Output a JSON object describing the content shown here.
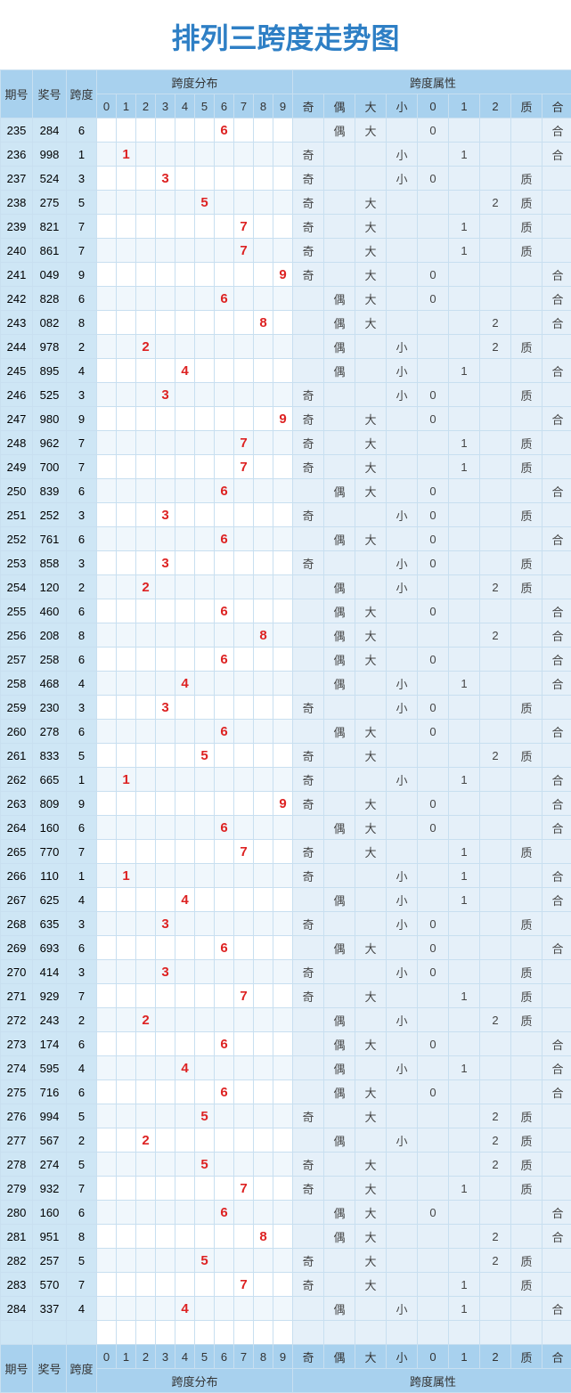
{
  "title": "排列三跨度走势图",
  "headers": {
    "期号": "期号",
    "奖号": "奖号",
    "跨度": "跨度",
    "跨度分布": "跨度分布",
    "跨度属性": "跨度属性",
    "nums": [
      "0",
      "1",
      "2",
      "3",
      "4",
      "5",
      "6",
      "7",
      "8",
      "9"
    ],
    "attrs": [
      "奇",
      "偶",
      "大",
      "小",
      "0",
      "1",
      "2",
      "质",
      "合"
    ]
  },
  "rows": [
    {
      "期号": "235",
      "奖号": "284",
      "跨度": "6",
      "分布": 6,
      "属": {
        "偶": "偶",
        "大": "大",
        "0": "0",
        "合": "合"
      }
    },
    {
      "期号": "236",
      "奖号": "998",
      "跨度": "1",
      "分布": 1,
      "属": {
        "奇": "奇",
        "小": "小",
        "1": "1",
        "合": "合"
      }
    },
    {
      "期号": "237",
      "奖号": "524",
      "跨度": "3",
      "分布": 3,
      "属": {
        "奇": "奇",
        "小": "小",
        "0": "0",
        "质": "质"
      }
    },
    {
      "期号": "238",
      "奖号": "275",
      "跨度": "5",
      "分布": 5,
      "属": {
        "奇": "奇",
        "大": "大",
        "2": "2",
        "质": "质"
      }
    },
    {
      "期号": "239",
      "奖号": "821",
      "跨度": "7",
      "分布": 7,
      "属": {
        "奇": "奇",
        "大": "大",
        "1": "1",
        "质": "质"
      }
    },
    {
      "期号": "240",
      "奖号": "861",
      "跨度": "7",
      "分布": 7,
      "属": {
        "奇": "奇",
        "大": "大",
        "1": "1",
        "质": "质"
      }
    },
    {
      "期号": "241",
      "奖号": "049",
      "跨度": "9",
      "分布": 9,
      "属": {
        "奇": "奇",
        "大": "大",
        "0": "0",
        "合": "合"
      }
    },
    {
      "期号": "242",
      "奖号": "828",
      "跨度": "6",
      "分布": 6,
      "属": {
        "偶": "偶",
        "大": "大",
        "0": "0",
        "合": "合"
      }
    },
    {
      "期号": "243",
      "奖号": "082",
      "跨度": "8",
      "分布": 8,
      "属": {
        "偶": "偶",
        "大": "大",
        "2": "2",
        "合": "合"
      }
    },
    {
      "期号": "244",
      "奖号": "978",
      "跨度": "2",
      "分布": 2,
      "属": {
        "偶": "偶",
        "小": "小",
        "2": "2",
        "质": "质"
      }
    },
    {
      "期号": "245",
      "奖号": "895",
      "跨度": "4",
      "分布": 4,
      "属": {
        "偶": "偶",
        "小": "小",
        "1": "1",
        "合": "合"
      }
    },
    {
      "期号": "246",
      "奖号": "525",
      "跨度": "3",
      "分布": 3,
      "属": {
        "奇": "奇",
        "小": "小",
        "0": "0",
        "质": "质"
      }
    },
    {
      "期号": "247",
      "奖号": "980",
      "跨度": "9",
      "分布": 9,
      "属": {
        "奇": "奇",
        "大": "大",
        "0": "0",
        "合": "合"
      }
    },
    {
      "期号": "248",
      "奖号": "962",
      "跨度": "7",
      "分布": 7,
      "属": {
        "奇": "奇",
        "大": "大",
        "1": "1",
        "质": "质"
      }
    },
    {
      "期号": "249",
      "奖号": "700",
      "跨度": "7",
      "分布": 7,
      "属": {
        "奇": "奇",
        "大": "大",
        "1": "1",
        "质": "质"
      }
    },
    {
      "期号": "250",
      "奖号": "839",
      "跨度": "6",
      "分布": 6,
      "属": {
        "偶": "偶",
        "大": "大",
        "0": "0",
        "合": "合"
      }
    },
    {
      "期号": "251",
      "奖号": "252",
      "跨度": "3",
      "分布": 3,
      "属": {
        "奇": "奇",
        "小": "小",
        "0": "0",
        "质": "质"
      }
    },
    {
      "期号": "252",
      "奖号": "761",
      "跨度": "6",
      "分布": 6,
      "属": {
        "偶": "偶",
        "大": "大",
        "0": "0",
        "合": "合"
      }
    },
    {
      "期号": "253",
      "奖号": "858",
      "跨度": "3",
      "分布": 3,
      "属": {
        "奇": "奇",
        "小": "小",
        "0": "0",
        "质": "质"
      }
    },
    {
      "期号": "254",
      "奖号": "120",
      "跨度": "2",
      "分布": 2,
      "属": {
        "偶": "偶",
        "小": "小",
        "2": "2",
        "质": "质"
      }
    },
    {
      "期号": "255",
      "奖号": "460",
      "跨度": "6",
      "分布": 6,
      "属": {
        "偶": "偶",
        "大": "大",
        "0": "0",
        "合": "合"
      }
    },
    {
      "期号": "256",
      "奖号": "208",
      "跨度": "8",
      "分布": 8,
      "属": {
        "偶": "偶",
        "大": "大",
        "2": "2",
        "合": "合"
      }
    },
    {
      "期号": "257",
      "奖号": "258",
      "跨度": "6",
      "分布": 6,
      "属": {
        "偶": "偶",
        "大": "大",
        "0": "0",
        "合": "合"
      }
    },
    {
      "期号": "258",
      "奖号": "468",
      "跨度": "4",
      "分布": 4,
      "属": {
        "偶": "偶",
        "小": "小",
        "1": "1",
        "合": "合"
      }
    },
    {
      "期号": "259",
      "奖号": "230",
      "跨度": "3",
      "分布": 3,
      "属": {
        "奇": "奇",
        "小": "小",
        "0": "0",
        "质": "质"
      }
    },
    {
      "期号": "260",
      "奖号": "278",
      "跨度": "6",
      "分布": 6,
      "属": {
        "偶": "偶",
        "大": "大",
        "0": "0",
        "合": "合"
      }
    },
    {
      "期号": "261",
      "奖号": "833",
      "跨度": "5",
      "分布": 5,
      "属": {
        "奇": "奇",
        "大": "大",
        "2": "2",
        "质": "质"
      }
    },
    {
      "期号": "262",
      "奖号": "665",
      "跨度": "1",
      "分布": 1,
      "属": {
        "奇": "奇",
        "小": "小",
        "1": "1",
        "合": "合"
      }
    },
    {
      "期号": "263",
      "奖号": "809",
      "跨度": "9",
      "分布": 9,
      "属": {
        "奇": "奇",
        "大": "大",
        "0": "0",
        "合": "合"
      }
    },
    {
      "期号": "264",
      "奖号": "160",
      "跨度": "6",
      "分布": 6,
      "属": {
        "偶": "偶",
        "大": "大",
        "0": "0",
        "合": "合"
      }
    },
    {
      "期号": "265",
      "奖号": "770",
      "跨度": "7",
      "分布": 7,
      "属": {
        "奇": "奇",
        "大": "大",
        "1": "1",
        "质": "质"
      }
    },
    {
      "期号": "266",
      "奖号": "110",
      "跨度": "1",
      "分布": 1,
      "属": {
        "奇": "奇",
        "小": "小",
        "1": "1",
        "合": "合"
      }
    },
    {
      "期号": "267",
      "奖号": "625",
      "跨度": "4",
      "分布": 4,
      "属": {
        "偶": "偶",
        "小": "小",
        "1": "1",
        "合": "合"
      }
    },
    {
      "期号": "268",
      "奖号": "635",
      "跨度": "3",
      "分布": 3,
      "属": {
        "奇": "奇",
        "小": "小",
        "0": "0",
        "质": "质"
      }
    },
    {
      "期号": "269",
      "奖号": "693",
      "跨度": "6",
      "分布": 6,
      "属": {
        "偶": "偶",
        "大": "大",
        "0": "0",
        "合": "合"
      }
    },
    {
      "期号": "270",
      "奖号": "414",
      "跨度": "3",
      "分布": 3,
      "属": {
        "奇": "奇",
        "小": "小",
        "0": "0",
        "质": "质"
      }
    },
    {
      "期号": "271",
      "奖号": "929",
      "跨度": "7",
      "分布": 7,
      "属": {
        "奇": "奇",
        "大": "大",
        "1": "1",
        "质": "质"
      }
    },
    {
      "期号": "272",
      "奖号": "243",
      "跨度": "2",
      "分布": 2,
      "属": {
        "偶": "偶",
        "小": "小",
        "2": "2",
        "质": "质"
      }
    },
    {
      "期号": "273",
      "奖号": "174",
      "跨度": "6",
      "分布": 6,
      "属": {
        "偶": "偶",
        "大": "大",
        "0": "0",
        "合": "合"
      }
    },
    {
      "期号": "274",
      "奖号": "595",
      "跨度": "4",
      "分布": 4,
      "属": {
        "偶": "偶",
        "小": "小",
        "1": "1",
        "合": "合"
      }
    },
    {
      "期号": "275",
      "奖号": "716",
      "跨度": "6",
      "分布": 6,
      "属": {
        "偶": "偶",
        "大": "大",
        "0": "0",
        "合": "合"
      }
    },
    {
      "期号": "276",
      "奖号": "994",
      "跨度": "5",
      "分布": 5,
      "属": {
        "奇": "奇",
        "大": "大",
        "2": "2",
        "质": "质"
      }
    },
    {
      "期号": "277",
      "奖号": "567",
      "跨度": "2",
      "分布": 2,
      "属": {
        "偶": "偶",
        "小": "小",
        "2": "2",
        "质": "质"
      }
    },
    {
      "期号": "278",
      "奖号": "274",
      "跨度": "5",
      "分布": 5,
      "属": {
        "奇": "奇",
        "大": "大",
        "2": "2",
        "质": "质"
      }
    },
    {
      "期号": "279",
      "奖号": "932",
      "跨度": "7",
      "分布": 7,
      "属": {
        "奇": "奇",
        "大": "大",
        "1": "1",
        "质": "质"
      }
    },
    {
      "期号": "280",
      "奖号": "160",
      "跨度": "6",
      "分布": 6,
      "属": {
        "偶": "偶",
        "大": "大",
        "0": "0",
        "合": "合"
      }
    },
    {
      "期号": "281",
      "奖号": "951",
      "跨度": "8",
      "分布": 8,
      "属": {
        "偶": "偶",
        "大": "大",
        "2": "2",
        "合": "合"
      }
    },
    {
      "期号": "282",
      "奖号": "257",
      "跨度": "5",
      "分布": 5,
      "属": {
        "奇": "奇",
        "大": "大",
        "2": "2",
        "质": "质"
      }
    },
    {
      "期号": "283",
      "奖号": "570",
      "跨度": "7",
      "分布": 7,
      "属": {
        "奇": "奇",
        "大": "大",
        "1": "1",
        "质": "质"
      }
    },
    {
      "期号": "284",
      "奖号": "337",
      "跨度": "4",
      "分布": 4,
      "属": {
        "偶": "偶",
        "小": "小",
        "1": "1",
        "合": "合"
      }
    }
  ],
  "style": {
    "title_color": "#2e7fc5",
    "header_bg": "#a8d1ee",
    "label_bg": "#cee6f5",
    "row_even_bg": "#f0f7fc",
    "row_odd_bg": "#ffffff",
    "attr_bg": "#e5f0f9",
    "border_color": "#c8dff0",
    "red": "#d22"
  }
}
